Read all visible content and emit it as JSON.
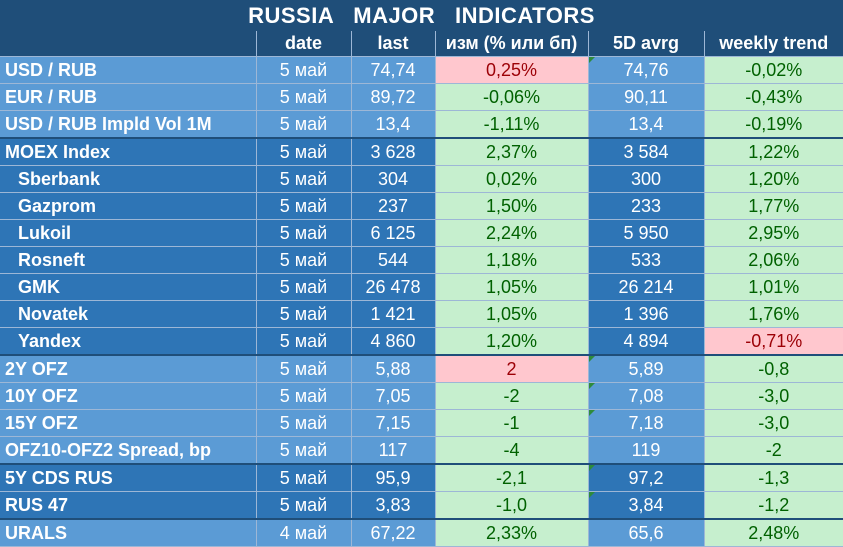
{
  "title": "RUSSIA   MAJOR   INDICATORS",
  "headers": [
    "",
    "date",
    "last",
    "изм (% или бп)",
    "5D avrg",
    "weekly trend"
  ],
  "rows": [
    {
      "name": "USD / RUB",
      "date": "5 май",
      "last": "74,74",
      "change": "0,25%",
      "avg5d": "74,76",
      "trend": "-0,02%"
    },
    {
      "name": "EUR / RUB",
      "date": "5 май",
      "last": "89,72",
      "change": "-0,06%",
      "avg5d": "90,11",
      "trend": "-0,43%"
    },
    {
      "name": "USD / RUB Impld Vol 1M",
      "date": "5 май",
      "last": "13,4",
      "change": "-1,11%",
      "avg5d": "13,4",
      "trend": "-0,19%"
    },
    {
      "name": "MOEX Index",
      "date": "5 май",
      "last": "3 628",
      "change": "2,37%",
      "avg5d": "3 584",
      "trend": "1,22%"
    },
    {
      "name": "Sberbank",
      "date": "5 май",
      "last": "304",
      "change": "0,02%",
      "avg5d": "300",
      "trend": "1,20%"
    },
    {
      "name": "Gazprom",
      "date": "5 май",
      "last": "237",
      "change": "1,50%",
      "avg5d": "233",
      "trend": "1,77%"
    },
    {
      "name": "Lukoil",
      "date": "5 май",
      "last": "6 125",
      "change": "2,24%",
      "avg5d": "5 950",
      "trend": "2,95%"
    },
    {
      "name": "Rosneft",
      "date": "5 май",
      "last": "544",
      "change": "1,18%",
      "avg5d": "533",
      "trend": "2,06%"
    },
    {
      "name": "GMK",
      "date": "5 май",
      "last": "26 478",
      "change": "1,05%",
      "avg5d": "26 214",
      "trend": "1,01%"
    },
    {
      "name": "Novatek",
      "date": "5 май",
      "last": "1 421",
      "change": "1,05%",
      "avg5d": "1 396",
      "trend": "1,76%"
    },
    {
      "name": "Yandex",
      "date": "5 май",
      "last": "4 860",
      "change": "1,20%",
      "avg5d": "4 894",
      "trend": "-0,71%"
    },
    {
      "name": "2Y OFZ",
      "date": "5 май",
      "last": "5,88",
      "change": "2",
      "avg5d": "5,89",
      "trend": "-0,8"
    },
    {
      "name": "10Y OFZ",
      "date": "5 май",
      "last": "7,05",
      "change": "-2",
      "avg5d": "7,08",
      "trend": "-3,0"
    },
    {
      "name": "15Y OFZ",
      "date": "5 май",
      "last": "7,15",
      "change": "-1",
      "avg5d": "7,18",
      "trend": "-3,0"
    },
    {
      "name": "OFZ10-OFZ2 Spread, bp",
      "date": "5 май",
      "last": "117",
      "change": "-4",
      "avg5d": "119",
      "trend": "-2"
    },
    {
      "name": "5Y CDS RUS",
      "date": "5 май",
      "last": "95,9",
      "change": "-2,1",
      "avg5d": "97,2",
      "trend": "-1,3"
    },
    {
      "name": "RUS 47",
      "date": "5 май",
      "last": "3,83",
      "change": "-1,0",
      "avg5d": "3,84",
      "trend": "-1,2"
    },
    {
      "name": "URALS",
      "date": "4 май",
      "last": "67,22",
      "change": "2,33%",
      "avg5d": "65,6",
      "trend": "2,48%"
    }
  ],
  "colors": {
    "header_bg": "#1f4e79",
    "light_blue": "#5b9bd5",
    "mid_blue": "#2e75b6",
    "positive_bg": "#c6efce",
    "positive_text": "#006100",
    "negative_bg": "#ffc7ce",
    "negative_text": "#9c0006"
  }
}
